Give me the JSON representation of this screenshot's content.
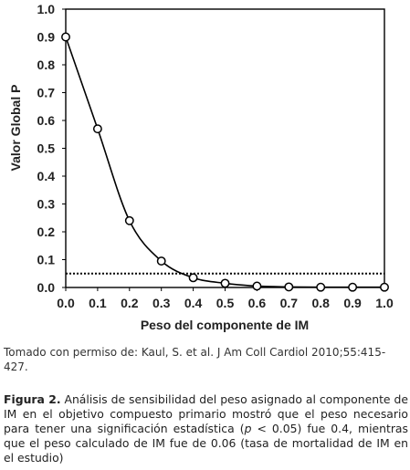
{
  "chart_data": {
    "type": "line",
    "x": [
      0.0,
      0.1,
      0.2,
      0.3,
      0.4,
      0.5,
      0.6,
      0.7,
      0.8,
      0.9,
      1.0
    ],
    "series": [
      {
        "values": [
          0.9,
          0.57,
          0.24,
          0.095,
          0.035,
          0.015,
          0.005,
          0.002,
          0.001,
          0.001,
          0.001
        ]
      }
    ],
    "reference_line": {
      "y": 0.05,
      "style": "dotted"
    },
    "xlim": [
      0.0,
      1.0
    ],
    "ylim": [
      0.0,
      1.0
    ],
    "xticks": [
      "0.0",
      "0.1",
      "0.2",
      "0.3",
      "0.4",
      "0.5",
      "0.6",
      "0.7",
      "0.8",
      "0.9",
      "1.0"
    ],
    "yticks": [
      "0.0",
      "0.1",
      "0.2",
      "0.3",
      "0.4",
      "0.5",
      "0.6",
      "0.7",
      "0.8",
      "0.9",
      "1.0"
    ],
    "xlabel": "Peso del componente de IM",
    "ylabel": "Valor Global P",
    "grid": false,
    "marker": "open-circle",
    "line_color": "#000000"
  },
  "source_note": "Tomado con permiso de: Kaul, S. et al. J Am Coll Cardiol 2010;55:415-427.",
  "caption": {
    "label": "Figura 2.",
    "text_before_p": " Análisis de sensibilidad del peso asignado al componente de IM en el objetivo compuesto primario mostró que el peso necesario para tener una significación estadística (",
    "p_symbol": "p",
    "text_after_p": " < 0.05) fue 0.4, mientras que el peso calculado de IM fue de 0.06 (tasa de mortalidad de IM en el estudio)"
  }
}
